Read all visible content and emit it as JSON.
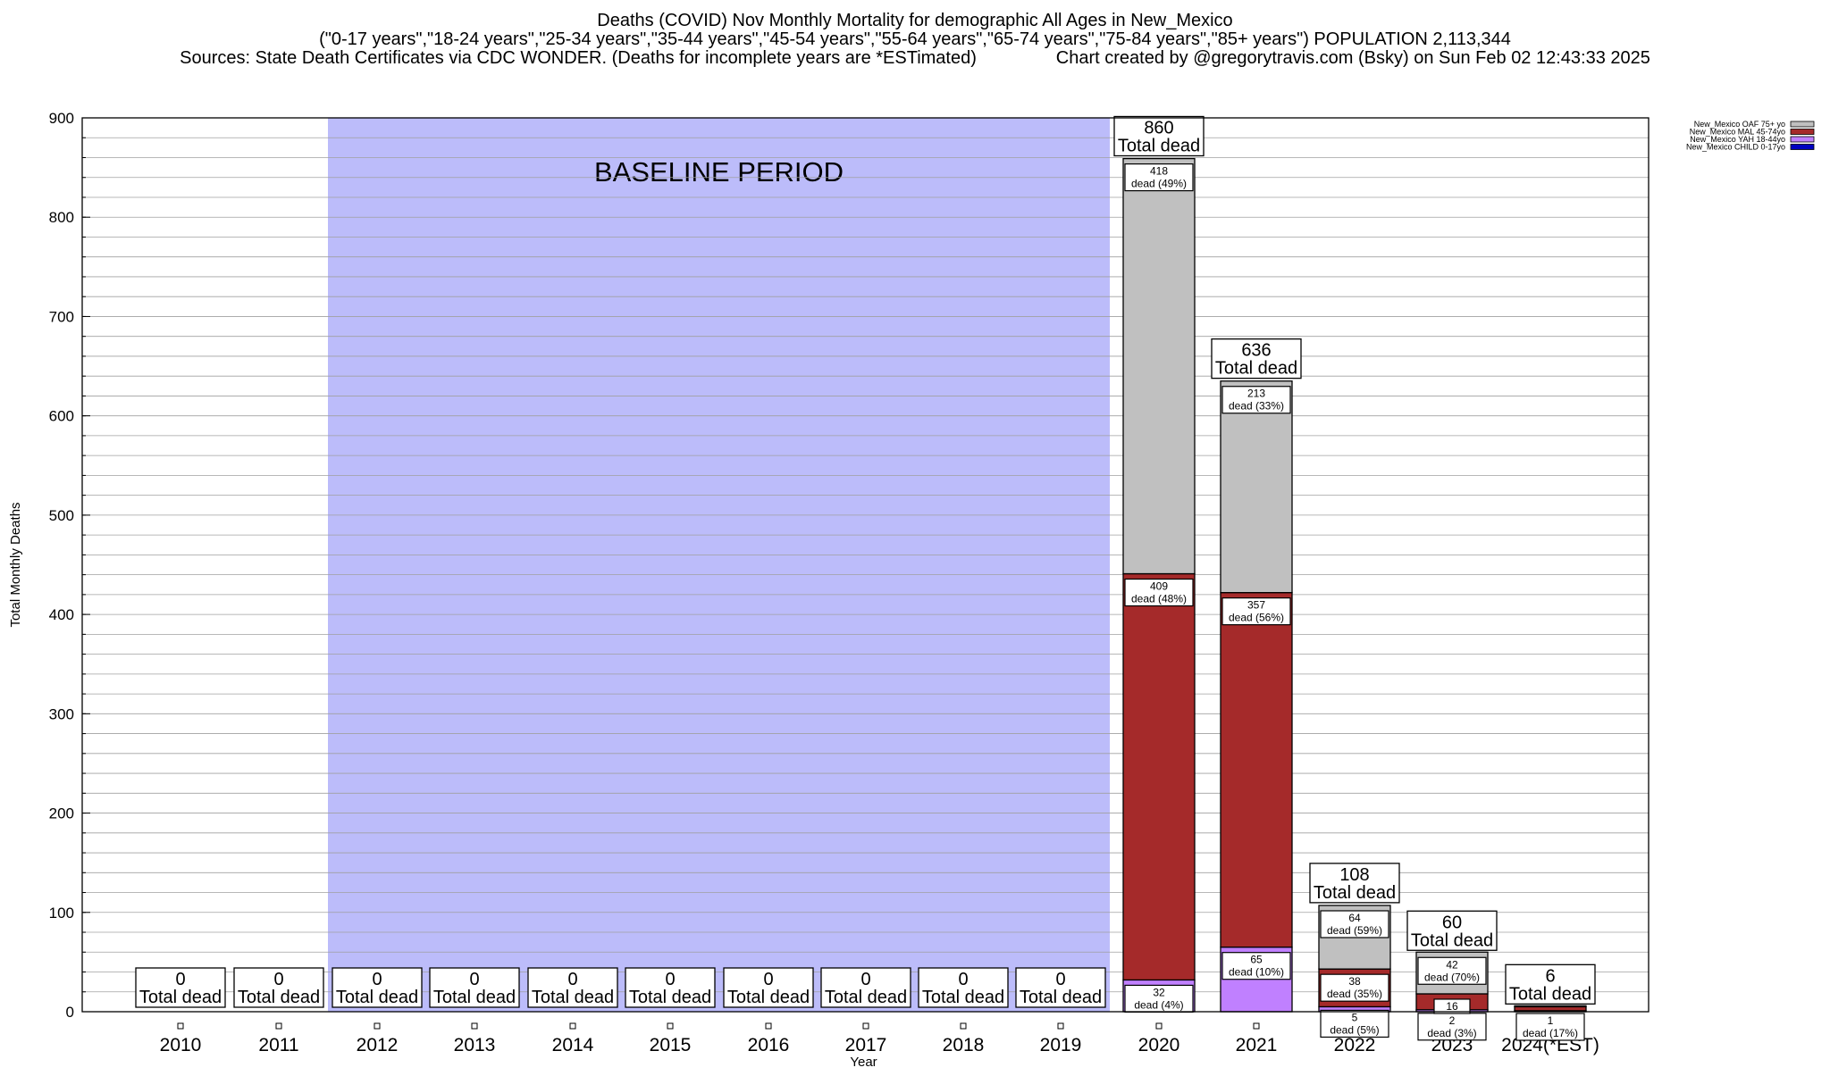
{
  "header": {
    "line1": "Deaths (COVID) Nov Monthly Mortality for demographic All Ages in New_Mexico",
    "line2": "(\"0-17 years\",\"18-24 years\",\"25-34 years\",\"35-44 years\",\"45-54 years\",\"55-64 years\",\"65-74 years\",\"75-84 years\",\"85+ years\") POPULATION 2,113,344",
    "line3": "Sources: State Death Certificates via CDC WONDER. (Deaths for incomplete years are *ESTimated)                Chart created by @gregorytravis.com (Bsky) on Sun Feb 02 12:43:33 2025"
  },
  "colors": {
    "baseline": "#bcbcfa",
    "oaf": "#c0c0c0",
    "mal": "#a52a2a",
    "yah": "#c080ff",
    "child": "#0000c0"
  },
  "chart_data": {
    "type": "bar",
    "stacked": true,
    "xlabel": "Year",
    "ylabel": "Total Monthly Deaths",
    "ylim": [
      0,
      900
    ],
    "yticks": [
      0,
      100,
      200,
      300,
      400,
      500,
      600,
      700,
      800,
      900
    ],
    "grid": true,
    "legend_position": "top-right, outside plot",
    "baseline_label": "BASELINE PERIOD",
    "baseline_range": [
      "2012",
      "2019"
    ],
    "total_suffix": "Total dead",
    "categories": [
      "2010",
      "2011",
      "2012",
      "2013",
      "2014",
      "2015",
      "2016",
      "2017",
      "2018",
      "2019",
      "2020",
      "2021",
      "2022",
      "2023",
      "2024(*EST)"
    ],
    "totals": [
      0,
      0,
      0,
      0,
      0,
      0,
      0,
      0,
      0,
      0,
      860,
      636,
      108,
      60,
      6
    ],
    "series": [
      {
        "name": "New_Mexico CHILD 0-17yo",
        "color_key": "child",
        "values": [
          0,
          0,
          0,
          0,
          0,
          0,
          0,
          0,
          0,
          0,
          0,
          0,
          0,
          0,
          0
        ],
        "labels": [
          "",
          "",
          "",
          "",
          "",
          "",
          "",
          "",
          "",
          "",
          "",
          "",
          "",
          "",
          ""
        ]
      },
      {
        "name": "New_Mexico YAH 18-44yo",
        "color_key": "yah",
        "values": [
          0,
          0,
          0,
          0,
          0,
          0,
          0,
          0,
          0,
          0,
          32,
          65,
          5,
          2,
          1
        ],
        "labels": [
          "",
          "",
          "",
          "",
          "",
          "",
          "",
          "",
          "",
          "",
          "32\ndead (4%)",
          "65\ndead (10%)",
          "5\ndead (5%)",
          "2\ndead (3%)",
          "1\ndead (17%)"
        ]
      },
      {
        "name": "New_Mexico MAL 45-74yo",
        "color_key": "mal",
        "values": [
          0,
          0,
          0,
          0,
          0,
          0,
          0,
          0,
          0,
          0,
          409,
          357,
          38,
          16,
          4
        ],
        "labels": [
          "",
          "",
          "",
          "",
          "",
          "",
          "",
          "",
          "",
          "",
          "409\ndead (48%)",
          "357\ndead (56%)",
          "38\ndead (35%)",
          "16",
          ""
        ]
      },
      {
        "name": "New_Mexico OAF 75+ yo",
        "color_key": "oaf",
        "values": [
          0,
          0,
          0,
          0,
          0,
          0,
          0,
          0,
          0,
          0,
          418,
          213,
          64,
          42,
          1
        ],
        "labels": [
          "",
          "",
          "",
          "",
          "",
          "",
          "",
          "",
          "",
          "",
          "418\ndead (49%)",
          "213\ndead (33%)",
          "64\ndead (59%)",
          "42\ndead (70%)",
          ""
        ]
      }
    ],
    "legend_order": [
      "New_Mexico OAF 75+ yo",
      "New_Mexico MAL 45-74yo",
      "New_Mexico YAH 18-44yo",
      "New_Mexico CHILD 0-17yo"
    ]
  }
}
